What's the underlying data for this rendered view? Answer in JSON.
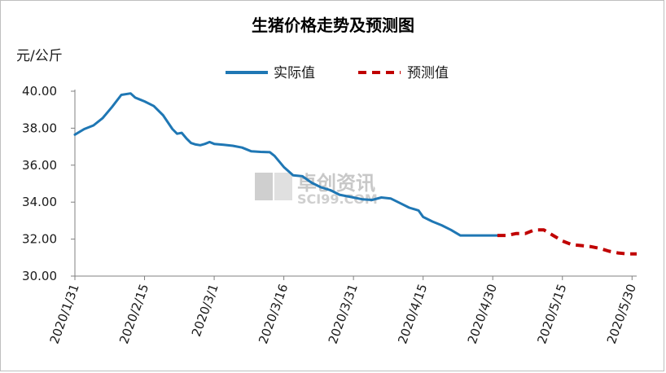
{
  "colors": {
    "actual": "#1f77b4",
    "forecast": "#c00000",
    "axis": "#808080",
    "watermark": "#c8c8c8"
  },
  "watermark": {
    "text": "卓创资讯",
    "sub": "SCI99.COM"
  },
  "chart_data": {
    "type": "line",
    "title": "生猪价格走势及预测图",
    "ylabel": "元/公斤",
    "xlabel": "",
    "ylim": [
      30,
      40
    ],
    "yticks": [
      "30.00",
      "32.00",
      "34.00",
      "36.00",
      "38.00",
      "40.00"
    ],
    "xlim": [
      "2020-01-31",
      "2020-05-31"
    ],
    "xticks": [
      "2020/1/31",
      "2020/2/15",
      "2020/3/1",
      "2020/3/16",
      "2020/3/31",
      "2020/4/15",
      "2020/4/30",
      "2020/5/15",
      "2020/5/30"
    ],
    "grid": false,
    "legend": "top-center",
    "series": [
      {
        "name": "实际值",
        "style": "solid",
        "x": [
          "2020-01-31",
          "2020-02-02",
          "2020-02-04",
          "2020-02-06",
          "2020-02-08",
          "2020-02-10",
          "2020-02-12",
          "2020-02-13",
          "2020-02-14",
          "2020-02-15",
          "2020-02-17",
          "2020-02-19",
          "2020-02-21",
          "2020-02-22",
          "2020-02-23",
          "2020-02-24",
          "2020-02-25",
          "2020-02-26",
          "2020-02-27",
          "2020-02-28",
          "2020-02-29",
          "2020-03-01",
          "2020-03-03",
          "2020-03-05",
          "2020-03-07",
          "2020-03-09",
          "2020-03-11",
          "2020-03-13",
          "2020-03-14",
          "2020-03-16",
          "2020-03-18",
          "2020-03-20",
          "2020-03-22",
          "2020-03-24",
          "2020-03-26",
          "2020-03-28",
          "2020-03-30",
          "2020-03-31",
          "2020-04-02",
          "2020-04-04",
          "2020-04-06",
          "2020-04-08",
          "2020-04-10",
          "2020-04-12",
          "2020-04-14",
          "2020-04-15",
          "2020-04-17",
          "2020-04-19",
          "2020-04-21",
          "2020-04-23",
          "2020-04-24",
          "2020-04-25",
          "2020-04-27",
          "2020-04-29",
          "2020-05-01"
        ],
        "values": [
          37.65,
          37.95,
          38.15,
          38.55,
          39.15,
          39.8,
          39.88,
          39.65,
          39.55,
          39.45,
          39.2,
          38.7,
          37.95,
          37.7,
          37.75,
          37.45,
          37.2,
          37.12,
          37.08,
          37.15,
          37.25,
          37.15,
          37.1,
          37.05,
          36.95,
          36.75,
          36.72,
          36.7,
          36.5,
          35.9,
          35.45,
          35.4,
          35.05,
          34.8,
          34.65,
          34.4,
          34.3,
          34.25,
          34.15,
          34.12,
          34.25,
          34.2,
          33.95,
          33.7,
          33.55,
          33.2,
          32.95,
          32.75,
          32.5,
          32.2,
          32.2,
          32.2,
          32.2,
          32.2,
          32.2
        ]
      },
      {
        "name": "预测值",
        "style": "dashed",
        "x": [
          "2020-05-01",
          "2020-05-03",
          "2020-05-05",
          "2020-05-07",
          "2020-05-09",
          "2020-05-11",
          "2020-05-13",
          "2020-05-15",
          "2020-05-17",
          "2020-05-19",
          "2020-05-21",
          "2020-05-23",
          "2020-05-25",
          "2020-05-27",
          "2020-05-29",
          "2020-05-31"
        ],
        "values": [
          32.2,
          32.2,
          32.3,
          32.3,
          32.5,
          32.5,
          32.2,
          31.9,
          31.7,
          31.65,
          31.6,
          31.5,
          31.35,
          31.25,
          31.2,
          31.2
        ]
      }
    ]
  }
}
